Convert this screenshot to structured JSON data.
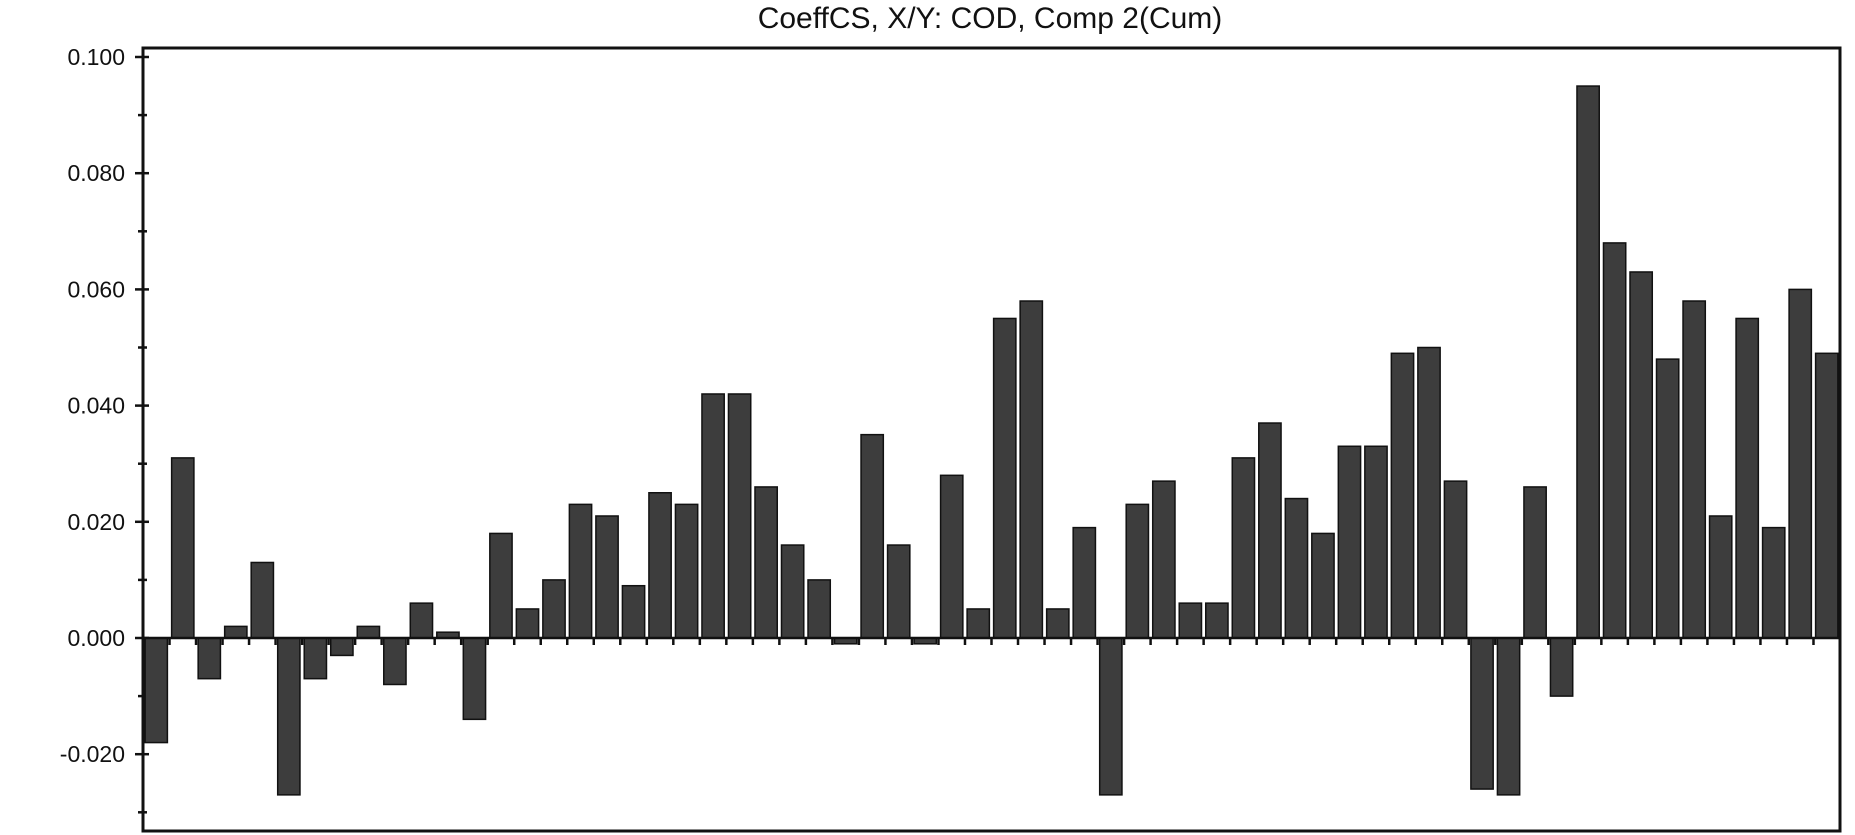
{
  "chart_data": {
    "type": "bar",
    "title": "CoeffCS, X/Y: COD, Comp 2(Cum)",
    "xlabel": "",
    "ylabel": "",
    "ylim": [
      -0.033,
      0.1
    ],
    "y_ticks": [
      -0.02,
      0.0,
      0.02,
      0.04,
      0.06,
      0.08,
      0.1
    ],
    "y_tick_labels": [
      "-0.020",
      "0.000",
      "0.020",
      "0.040",
      "0.060",
      "0.080",
      "0.100"
    ],
    "grid": false,
    "legend": "none",
    "bar_color": "#3d3d3d",
    "values": [
      -0.018,
      0.031,
      -0.007,
      0.002,
      0.013,
      -0.027,
      -0.007,
      -0.003,
      0.002,
      -0.008,
      0.006,
      0.001,
      -0.014,
      0.018,
      0.005,
      0.01,
      0.023,
      0.021,
      0.009,
      0.025,
      0.023,
      0.042,
      0.042,
      0.026,
      0.016,
      0.01,
      -0.001,
      0.035,
      0.016,
      -0.001,
      0.028,
      0.005,
      0.055,
      0.058,
      0.005,
      0.019,
      -0.027,
      0.023,
      0.027,
      0.006,
      0.006,
      0.031,
      0.037,
      0.024,
      0.018,
      0.033,
      0.033,
      0.049,
      0.05,
      0.027,
      -0.026,
      -0.027,
      0.026,
      -0.01,
      0.095,
      0.068,
      0.063,
      0.048,
      0.058,
      0.021,
      0.055,
      0.019,
      0.06,
      0.049
    ]
  }
}
